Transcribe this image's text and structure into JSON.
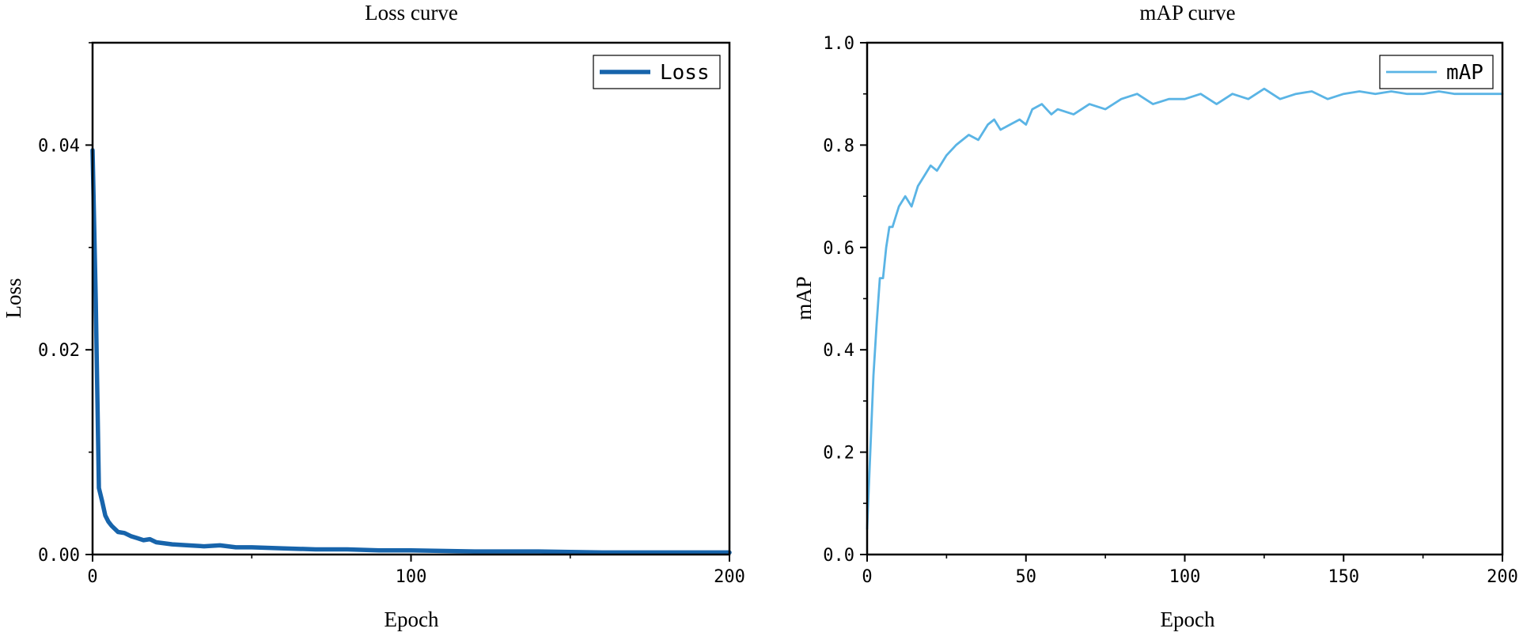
{
  "chart_data": [
    {
      "type": "line",
      "title": "Loss curve",
      "xlabel": "Epoch",
      "ylabel": "Loss",
      "xlim": [
        0,
        200
      ],
      "ylim": [
        0,
        0.05
      ],
      "xticks": [
        0,
        100,
        200
      ],
      "xtick_labels": [
        "0",
        "100",
        "200"
      ],
      "yticks": [
        0,
        0.02,
        0.04
      ],
      "ytick_labels": [
        "0.00",
        "0.02",
        "0.04"
      ],
      "grid": false,
      "legend": {
        "position": "top-right",
        "entries": [
          "Loss"
        ]
      },
      "series": [
        {
          "name": "Loss",
          "color": "#1764ab",
          "x": [
            0,
            1,
            2,
            3,
            4,
            5,
            6,
            8,
            10,
            12,
            14,
            16,
            18,
            20,
            25,
            30,
            35,
            40,
            45,
            50,
            60,
            70,
            80,
            90,
            100,
            120,
            140,
            160,
            180,
            200
          ],
          "y": [
            0.0395,
            0.025,
            0.0065,
            0.0052,
            0.0038,
            0.0032,
            0.0028,
            0.0022,
            0.0021,
            0.0018,
            0.0016,
            0.0014,
            0.0015,
            0.0012,
            0.001,
            0.0009,
            0.0008,
            0.0009,
            0.0007,
            0.0007,
            0.0006,
            0.0005,
            0.0005,
            0.0004,
            0.0004,
            0.0003,
            0.0003,
            0.0002,
            0.0002,
            0.0002
          ]
        }
      ]
    },
    {
      "type": "line",
      "title": "mAP curve",
      "xlabel": "Epoch",
      "ylabel": "mAP",
      "xlim": [
        0,
        200
      ],
      "ylim": [
        0,
        1.0
      ],
      "xticks": [
        0,
        50,
        100,
        150,
        200
      ],
      "xtick_labels": [
        "0",
        "50",
        "100",
        "150",
        "200"
      ],
      "yticks": [
        0,
        0.2,
        0.4,
        0.6,
        0.8,
        1.0
      ],
      "ytick_labels": [
        "0.0",
        "0.2",
        "0.4",
        "0.6",
        "0.8",
        "1.0"
      ],
      "grid": false,
      "legend": {
        "position": "top-right",
        "entries": [
          "mAP"
        ]
      },
      "series": [
        {
          "name": "mAP",
          "color": "#5ab4e5",
          "x": [
            0,
            1,
            2,
            3,
            4,
            5,
            6,
            7,
            8,
            9,
            10,
            12,
            14,
            16,
            18,
            20,
            22,
            25,
            28,
            30,
            32,
            35,
            38,
            40,
            42,
            45,
            48,
            50,
            52,
            55,
            58,
            60,
            65,
            70,
            75,
            80,
            85,
            90,
            95,
            100,
            105,
            110,
            115,
            120,
            125,
            130,
            135,
            140,
            145,
            150,
            155,
            160,
            165,
            170,
            175,
            180,
            185,
            190,
            195,
            200
          ],
          "y": [
            0.05,
            0.2,
            0.35,
            0.45,
            0.54,
            0.54,
            0.6,
            0.64,
            0.64,
            0.66,
            0.68,
            0.7,
            0.68,
            0.72,
            0.74,
            0.76,
            0.75,
            0.78,
            0.8,
            0.81,
            0.82,
            0.81,
            0.84,
            0.85,
            0.83,
            0.84,
            0.85,
            0.84,
            0.87,
            0.88,
            0.86,
            0.87,
            0.86,
            0.88,
            0.87,
            0.89,
            0.9,
            0.88,
            0.89,
            0.89,
            0.9,
            0.88,
            0.9,
            0.89,
            0.91,
            0.89,
            0.9,
            0.905,
            0.89,
            0.9,
            0.905,
            0.9,
            0.905,
            0.9,
            0.9,
            0.905,
            0.9,
            0.9,
            0.9,
            0.9
          ]
        }
      ]
    }
  ]
}
